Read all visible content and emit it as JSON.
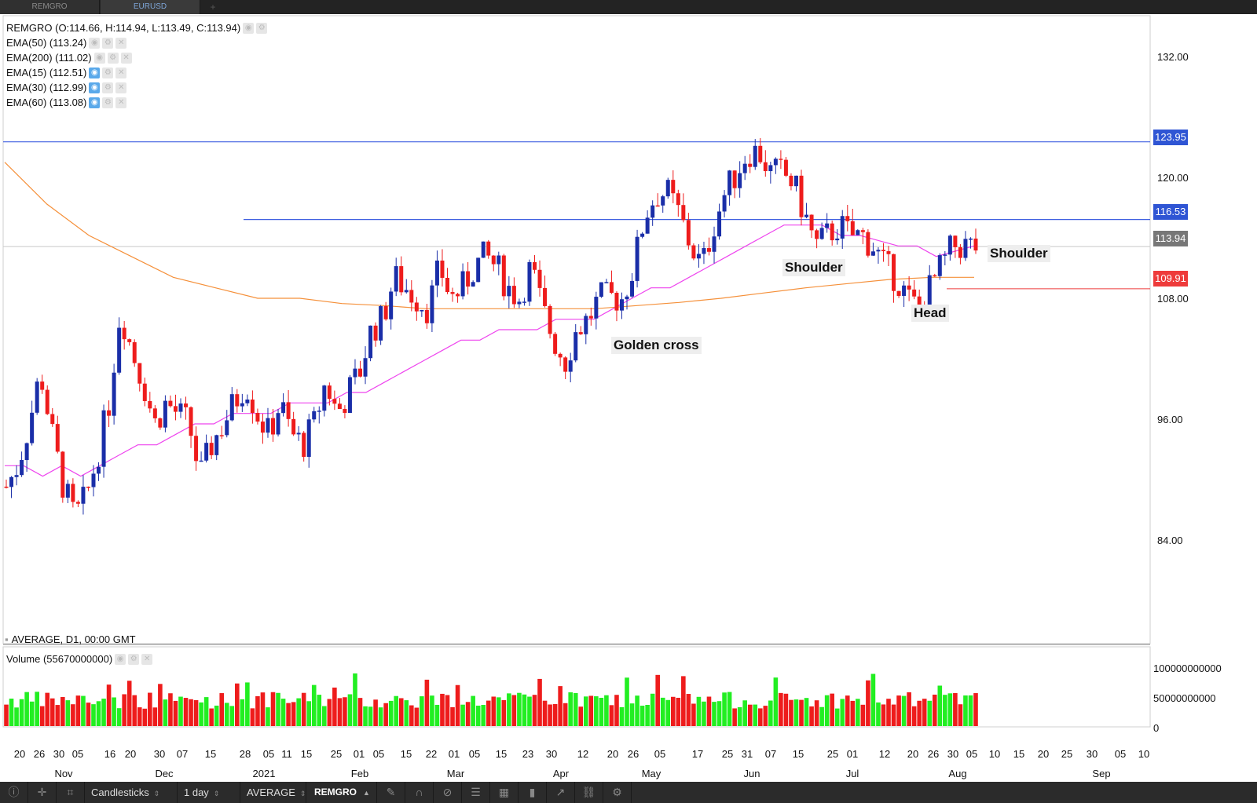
{
  "tabs": [
    {
      "label": "REMGRO",
      "active": false
    },
    {
      "label": "EURUSD",
      "active": true
    }
  ],
  "legend": {
    "main": "REMGRO (O:114.66, H:114.94, L:113.49, C:113.94)",
    "ema50": "EMA(50) (113.24)",
    "ema200": "EMA(200) (111.02)",
    "ema15": "EMA(15) (112.51)",
    "ema30": "EMA(30) (112.99)",
    "ema60": "EMA(60) (113.08)",
    "footer": "AVERAGE, D1, 00:00 GMT",
    "volume": "Volume (55670000000)"
  },
  "annotations": {
    "golden_cross": "Golden cross",
    "shoulder_left": "Shoulder",
    "head": "Head",
    "shoulder_right": "Shoulder"
  },
  "price_axis": [
    "132.00",
    "120.00",
    "108.00",
    "96.00",
    "84.00"
  ],
  "price_tags": {
    "resistance": "123.95",
    "neckline": "116.53",
    "last": "113.94",
    "support": "109.91"
  },
  "volume_axis": [
    "100000000000",
    "50000000000",
    "0"
  ],
  "x_days": [
    "20",
    "26",
    "30",
    "05",
    "16",
    "20",
    "30",
    "07",
    "15",
    "28",
    "05",
    "11",
    "15",
    "25",
    "01",
    "05",
    "15",
    "22",
    "01",
    "05",
    "15",
    "23",
    "30",
    "12",
    "20",
    "26",
    "05",
    "17",
    "25",
    "31",
    "07",
    "15",
    "25",
    "01",
    "12",
    "20",
    "26",
    "30",
    "05",
    "10",
    "15",
    "20",
    "25",
    "30",
    "05",
    "10"
  ],
  "x_months": [
    "Nov",
    "Dec",
    "2021",
    "Feb",
    "Mar",
    "Apr",
    "May",
    "Jun",
    "Jul",
    "Aug",
    "Sep"
  ],
  "toolbar": {
    "chart_type": "Candlesticks",
    "timeframe": "1 day",
    "price_type": "AVERAGE",
    "symbol": "REMGRO"
  },
  "colors": {
    "up": "#1a2ea8",
    "down": "#ee1c1c",
    "ema_short": "#ee44ee",
    "ema_long": "#f5903a",
    "hline": "#3f5fe0",
    "support": "#ee3b3b",
    "vol_up": "#22ee22",
    "vol_down": "#ee1c1c"
  },
  "chart_data": {
    "type": "candlestick",
    "symbol": "REMGRO",
    "ylim": [
      76,
      136
    ],
    "yticks": [
      84,
      96,
      108,
      120,
      132
    ],
    "horizontal_lines": [
      123.95,
      116.53,
      109.91
    ],
    "last_price": 113.94,
    "close_series": [
      91,
      93,
      97,
      102,
      96,
      91,
      88,
      90,
      94,
      99,
      108,
      104,
      101,
      97,
      99,
      98,
      97,
      92,
      95,
      97,
      99,
      101,
      98,
      96,
      99,
      96,
      95,
      97,
      101,
      98,
      100,
      102,
      106,
      107,
      111,
      110,
      109,
      108,
      112,
      109,
      110,
      112,
      113,
      112,
      110,
      109,
      112,
      108,
      105,
      103,
      106,
      107,
      109,
      109,
      109,
      112,
      117,
      119,
      119,
      117,
      114,
      112,
      116,
      119,
      121,
      123,
      123,
      121,
      121,
      120,
      117,
      114,
      115,
      116,
      115,
      115,
      114,
      112,
      111,
      109,
      108,
      110,
      112,
      114,
      114,
      113.94
    ],
    "ema_short": [
      93,
      93,
      92,
      93,
      92,
      93,
      94,
      95,
      95,
      96,
      97,
      97,
      98,
      98,
      98,
      99,
      99,
      99,
      100,
      100,
      101,
      102,
      103,
      104,
      105,
      105,
      106,
      106,
      106,
      107,
      107,
      107,
      108,
      109,
      110,
      110,
      111,
      112,
      113,
      114,
      115,
      116,
      116,
      116,
      115,
      115,
      114.5,
      114,
      114,
      113,
      113.5,
      114
    ],
    "ema_long": [
      122,
      118,
      115,
      113,
      111,
      110,
      109,
      109,
      108.5,
      108.3,
      108,
      108,
      108,
      108,
      108,
      108.3,
      108.6,
      109,
      109.5,
      110,
      110.4,
      110.8,
      111,
      111
    ]
  }
}
